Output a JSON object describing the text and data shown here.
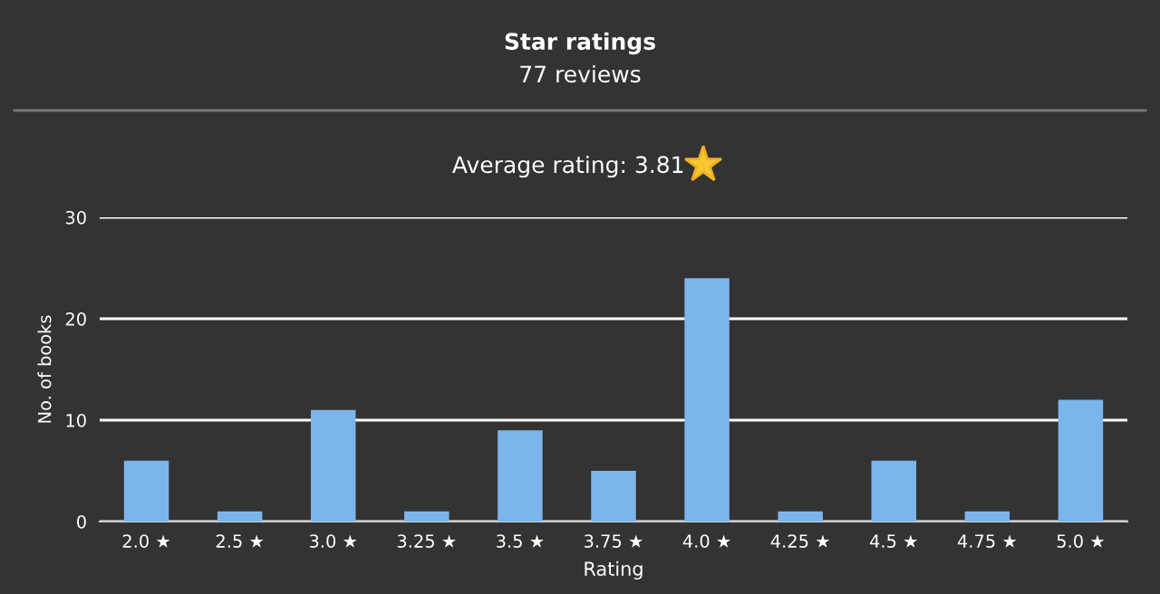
{
  "chart_data": {
    "type": "bar",
    "title": "Star ratings",
    "subtitle": "77 reviews",
    "annotations": [
      "Average rating: 3.81"
    ],
    "xlabel": "Rating",
    "ylabel": "No. of books",
    "categories": [
      "2.0 ★",
      "2.5 ★",
      "3.0 ★",
      "3.25 ★",
      "3.5 ★",
      "3.75 ★",
      "4.0 ★",
      "4.25 ★",
      "4.5 ★",
      "4.75 ★",
      "5.0 ★"
    ],
    "values": [
      6,
      1,
      11,
      1,
      9,
      5,
      24,
      1,
      6,
      1,
      12
    ],
    "color": "#7cb5ec",
    "ylim": [
      0,
      30
    ],
    "yticks": [
      0,
      10,
      20,
      30
    ],
    "grid": "y",
    "legend": false
  }
}
